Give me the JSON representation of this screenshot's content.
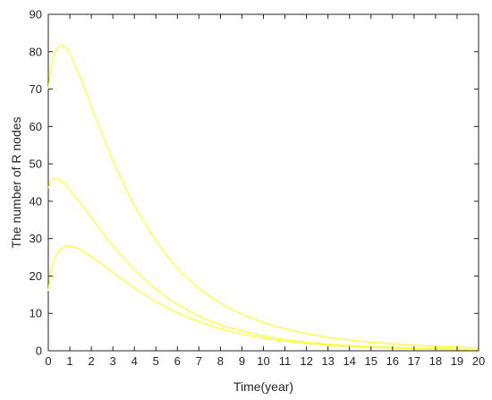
{
  "chart_data": {
    "type": "line",
    "title": "",
    "xlabel": "Time(year)",
    "ylabel": "The number of R nodes",
    "xlim": [
      0,
      20
    ],
    "ylim": [
      0,
      90
    ],
    "xticks": [
      0,
      1,
      2,
      3,
      4,
      5,
      6,
      7,
      8,
      9,
      10,
      11,
      12,
      13,
      14,
      15,
      16,
      17,
      18,
      19,
      20
    ],
    "yticks": [
      0,
      10,
      20,
      30,
      40,
      50,
      60,
      70,
      80,
      90
    ],
    "grid": false,
    "legend": "none",
    "line_color": "#ffff33",
    "series": [
      {
        "x": [
          0,
          0.1,
          0.2,
          0.4,
          0.6,
          0.8,
          1,
          1.5,
          2,
          2.5,
          3,
          3.5,
          4,
          5,
          6,
          7,
          8,
          9,
          10,
          11,
          12,
          13,
          14,
          15,
          16,
          17,
          18,
          19,
          20
        ],
        "values": [
          70,
          74.5,
          77.5,
          80.5,
          81.6,
          81.2,
          79.5,
          73,
          65.5,
          58,
          51,
          44.8,
          39,
          29.5,
          22.2,
          16.8,
          12.8,
          9.8,
          7.6,
          5.9,
          4.6,
          3.6,
          2.9,
          2.3,
          1.9,
          1.5,
          1.2,
          1.0,
          0.8
        ]
      },
      {
        "x": [
          0,
          0.1,
          0.2,
          0.4,
          0.6,
          0.8,
          1,
          1.5,
          2,
          2.5,
          3,
          3.5,
          4,
          5,
          6,
          7,
          8,
          9,
          10,
          11,
          12,
          13,
          14,
          15,
          16,
          17,
          18,
          19,
          20
        ],
        "values": [
          43.5,
          45,
          45.8,
          46,
          45.5,
          44.5,
          43,
          39.5,
          35.7,
          31.8,
          28.1,
          24.8,
          21.7,
          16.5,
          12.4,
          9.3,
          7.0,
          5.3,
          4.0,
          3.0,
          2.3,
          1.8,
          1.4,
          1.1,
          0.9,
          0.7,
          0.55,
          0.45,
          0.35
        ]
      },
      {
        "x": [
          0,
          0.1,
          0.2,
          0.4,
          0.6,
          0.8,
          1,
          1.2,
          1.5,
          2,
          2.5,
          3,
          3.5,
          4,
          5,
          6,
          7,
          8,
          9,
          10,
          11,
          12,
          13,
          14,
          15,
          16,
          17,
          18,
          19,
          20
        ],
        "values": [
          16,
          20.5,
          23,
          25.8,
          27.2,
          27.9,
          28,
          27.7,
          27,
          25.2,
          23.2,
          21,
          18.9,
          16.9,
          13.2,
          10.2,
          7.8,
          5.9,
          4.5,
          3.4,
          2.6,
          2.0,
          1.5,
          1.2,
          0.9,
          0.7,
          0.55,
          0.4,
          0.3,
          0.25
        ]
      }
    ]
  }
}
